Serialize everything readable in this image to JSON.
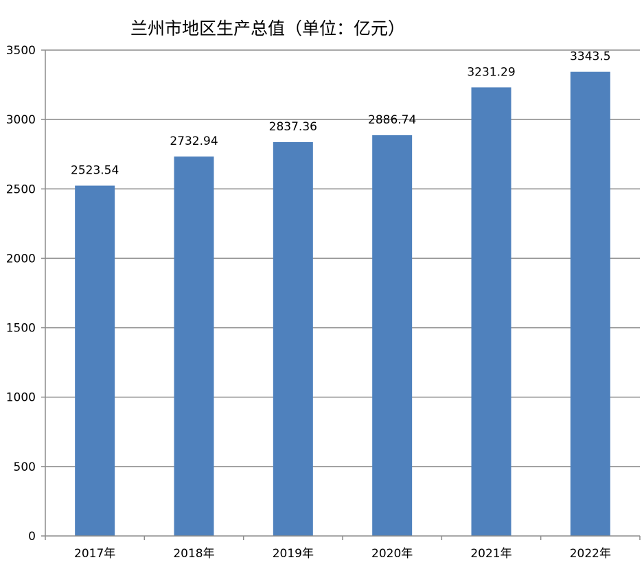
{
  "chart_data": {
    "type": "bar",
    "title": "兰州市地区生产总值（单位：亿元）",
    "categories": [
      "2017年",
      "2018年",
      "2019年",
      "2020年",
      "2021年",
      "2022年"
    ],
    "series": [
      {
        "values": [
          2523.54,
          2732.94,
          2837.36,
          2886.74,
          3231.29,
          3343.5
        ],
        "color": "#4F81BD"
      }
    ],
    "data_labels": [
      "2523.54",
      "2732.94",
      "2837.36",
      "2886.74",
      "3231.29",
      "3343.5"
    ],
    "y_ticks": [
      0,
      500,
      1000,
      1500,
      2000,
      2500,
      3000,
      3500
    ],
    "ylim": [
      0,
      3500
    ],
    "grid": true,
    "xlabel": "",
    "ylabel": ""
  }
}
